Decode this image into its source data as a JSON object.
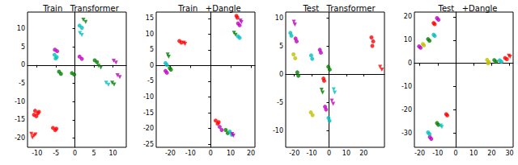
{
  "chart_data": [
    {
      "type": "scatter",
      "title": "Train   Transformer",
      "xlim": [
        -12.5,
        13.5
      ],
      "ylim": [
        -22.5,
        14.5
      ],
      "xticks": [
        -10,
        -5,
        0,
        5,
        10
      ],
      "yticks": [
        -20,
        -15,
        -10,
        -5,
        0,
        5,
        10
      ],
      "series": [
        {
          "color": "#ff0000",
          "marker": "circle",
          "x": [
            -10.5,
            -9.8,
            -10.2,
            -9.5,
            -10.8,
            -5.8,
            -5.2,
            -4.9
          ],
          "y": [
            -12.5,
            -13.2,
            -14,
            -12.8,
            -13.6,
            -17.2,
            -17.8,
            -17.4
          ]
        },
        {
          "color": "#ff0000",
          "marker": "triangle_down",
          "x": [
            -11.5,
            -10.8,
            -11.2,
            -10.4
          ],
          "y": [
            -18.8,
            -19.3,
            -19.8,
            -19.0
          ]
        },
        {
          "color": "#00bfbf",
          "marker": "circle",
          "x": [
            -5.4,
            -4.8,
            -5.1,
            1.2,
            1.8
          ],
          "y": [
            2.8,
            2.2,
            1.8,
            10.8,
            10.2
          ]
        },
        {
          "color": "#bf00bf",
          "marker": "circle",
          "x": [
            -5.3,
            -4.7,
            1.2,
            1.8
          ],
          "y": [
            4.2,
            3.8,
            2.3,
            1.7
          ]
        },
        {
          "color": "#008000",
          "marker": "circle",
          "x": [
            -4.2,
            -3.7,
            -0.8,
            -0.2,
            5.2,
            5.8
          ],
          "y": [
            -1.8,
            -2.4,
            -2.2,
            -2.6,
            1.3,
            0.8
          ]
        },
        {
          "color": "#008000",
          "marker": "triangle_down",
          "x": [
            2.2,
            2.8,
            6.2,
            6.8,
            9.8,
            10.3
          ],
          "y": [
            12.4,
            11.8,
            -0.2,
            -0.7,
            -4.8,
            -5.3
          ]
        },
        {
          "color": "#00bfbf",
          "marker": "triangle_down",
          "x": [
            8.2,
            8.8,
            1.3,
            1.8
          ],
          "y": [
            -4.8,
            -5.4,
            8.8,
            8.2
          ]
        },
        {
          "color": "#bf00bf",
          "marker": "triangle_down",
          "x": [
            11.2,
            11.8,
            10.2,
            10.8
          ],
          "y": [
            -2.8,
            -3.3,
            1.2,
            0.7
          ]
        }
      ]
    },
    {
      "type": "scatter",
      "title": "Train   +Dangle",
      "xlim": [
        -27,
        22
      ],
      "ylim": [
        -26,
        17
      ],
      "xticks": [
        -20,
        -10,
        0,
        10,
        20
      ],
      "yticks": [
        -25,
        -20,
        -15,
        -10,
        -5,
        0,
        5,
        10,
        15
      ],
      "series": [
        {
          "color": "#ff0000",
          "marker": "circle",
          "x": [
            -15.5,
            -14.5,
            12.8,
            13.3,
            2.5,
            3.5,
            4
          ],
          "y": [
            7.8,
            7.3,
            15.8,
            15.2,
            -17.5,
            -18.5,
            -18
          ]
        },
        {
          "color": "#ff0000",
          "marker": "triangle_down",
          "x": [
            -13.3,
            -12.7
          ],
          "y": [
            7.3,
            6.9
          ]
        },
        {
          "color": "#008000",
          "marker": "triangle_down",
          "x": [
            -21.3,
            -20.8,
            11.6,
            12.4
          ],
          "y": [
            3.5,
            2.8,
            10.4,
            9.8
          ]
        },
        {
          "color": "#008000",
          "marker": "circle",
          "x": [
            -20.3,
            -19.7,
            7.5,
            8.5
          ],
          "y": [
            -0.8,
            -1.3,
            -20.5,
            -21.5
          ]
        },
        {
          "color": "#00bfbf",
          "marker": "circle",
          "x": [
            -22.4,
            -21.7,
            13.6,
            14.4,
            9.5,
            10.5
          ],
          "y": [
            0.8,
            0.2,
            9.3,
            8.8,
            -21,
            -22
          ]
        },
        {
          "color": "#bf00bf",
          "marker": "circle",
          "x": [
            -22.4,
            -21.7,
            13.6,
            14.4,
            4.5,
            5.5
          ],
          "y": [
            -1.7,
            -2.3,
            13.4,
            12.8,
            -19.5,
            -20.5
          ]
        },
        {
          "color": "#bf00bf",
          "marker": "triangle_down",
          "x": [
            14.8,
            15.3,
            10.7,
            11.3
          ],
          "y": [
            14.3,
            13.8,
            -21.8,
            -22.3
          ]
        }
      ]
    },
    {
      "type": "scatter",
      "title": "Test   Transformer",
      "xlim": [
        -25,
        32
      ],
      "ylim": [
        -13,
        11
      ],
      "xticks": [
        -20,
        -10,
        0,
        10,
        20
      ],
      "yticks": [
        -10,
        -5,
        0,
        5,
        10
      ],
      "series": [
        {
          "color": "#bfbf00",
          "marker": "circle",
          "x": [
            -20.5,
            -19.5,
            -10.5,
            -9.5
          ],
          "y": [
            3.5,
            2.8,
            -6.8,
            -7.3
          ]
        },
        {
          "color": "#bf00bf",
          "marker": "circle",
          "x": [
            -19.3,
            -18.7,
            -5.3,
            -4.7,
            -2.3,
            -1.7
          ],
          "y": [
            6.3,
            5.8,
            4.3,
            3.8,
            -5.8,
            -6.3
          ]
        },
        {
          "color": "#00bfbf",
          "marker": "circle",
          "x": [
            -22.3,
            -21.7,
            -10.3,
            -9.7,
            -0.3,
            0.3
          ],
          "y": [
            7.3,
            6.8,
            3.3,
            2.7,
            -7.8,
            -8.3
          ]
        },
        {
          "color": "#008000",
          "marker": "circle",
          "x": [
            -18.3,
            -17.7,
            -0.4,
            0.4
          ],
          "y": [
            0.3,
            -0.3,
            1.3,
            0.8
          ]
        },
        {
          "color": "#ff0000",
          "marker": "circle",
          "x": [
            24.5,
            25.5,
            25,
            -3.2,
            -2.8
          ],
          "y": [
            6.5,
            5.8,
            5,
            -0.8,
            -1.2
          ]
        },
        {
          "color": "#ff0000",
          "marker": "triangle_down",
          "x": [
            29.5,
            30.5
          ],
          "y": [
            1.3,
            0.8
          ]
        },
        {
          "color": "#bf00bf",
          "marker": "triangle_down",
          "x": [
            1.6,
            2.4,
            -20.3,
            -19.7
          ],
          "y": [
            -4.7,
            -5.3,
            9.3,
            8.8
          ]
        },
        {
          "color": "#00bfbf",
          "marker": "triangle_down",
          "x": [
            2.7,
            3.3
          ],
          "y": [
            -2.7,
            -3.3
          ]
        },
        {
          "color": "#008000",
          "marker": "triangle_down",
          "x": [
            -4.3,
            -3.7
          ],
          "y": [
            -2.8,
            -3.3
          ]
        }
      ]
    },
    {
      "type": "scatter",
      "title": "Test   +Dangle",
      "xlim": [
        -23,
        32
      ],
      "ylim": [
        -36,
        22
      ],
      "xticks": [
        -20,
        -10,
        0,
        10,
        20,
        30
      ],
      "yticks": [
        -30,
        -20,
        -10,
        0,
        10,
        20
      ],
      "series": [
        {
          "color": "#bf00bf",
          "marker": "circle",
          "x": [
            -10.4,
            -9.6,
            -20.4,
            -19.6,
            -14.4,
            -13.6
          ],
          "y": [
            19.4,
            18.7,
            7.3,
            6.7,
            -31.6,
            -32.4
          ]
        },
        {
          "color": "#ff0000",
          "marker": "circle",
          "x": [
            -12.3,
            -11.7,
            27.5,
            28.5,
            -5.3,
            -4.7
          ],
          "y": [
            17.3,
            16.8,
            2.3,
            1.8,
            -21.8,
            -22.3
          ]
        },
        {
          "color": "#008000",
          "marker": "circle",
          "x": [
            -15.4,
            -14.6,
            21.5,
            22.5,
            -10.4,
            -9.6
          ],
          "y": [
            10.4,
            9.7,
            1.4,
            0.7,
            -25.6,
            -26.4
          ]
        },
        {
          "color": "#00bfbf",
          "marker": "circle",
          "x": [
            -12.3,
            -11.7,
            24.5,
            25.5,
            -15.4,
            -14.6
          ],
          "y": [
            12.3,
            11.8,
            1.3,
            0.7,
            -29.6,
            -30.3
          ]
        },
        {
          "color": "#bfbf00",
          "marker": "circle",
          "x": [
            17.5,
            18.5,
            18,
            -18.3,
            -17.7
          ],
          "y": [
            1.5,
            0.5,
            0,
            8.3,
            7.7
          ]
        },
        {
          "color": "#ff0000",
          "marker": "triangle_down",
          "x": [
            29.6,
            30.3
          ],
          "y": [
            3.3,
            2.8
          ]
        },
        {
          "color": "#00bfbf",
          "marker": "triangle_down",
          "x": [
            -8.3,
            -7.7
          ],
          "y": [
            -26.7,
            -27.3
          ]
        }
      ]
    }
  ]
}
